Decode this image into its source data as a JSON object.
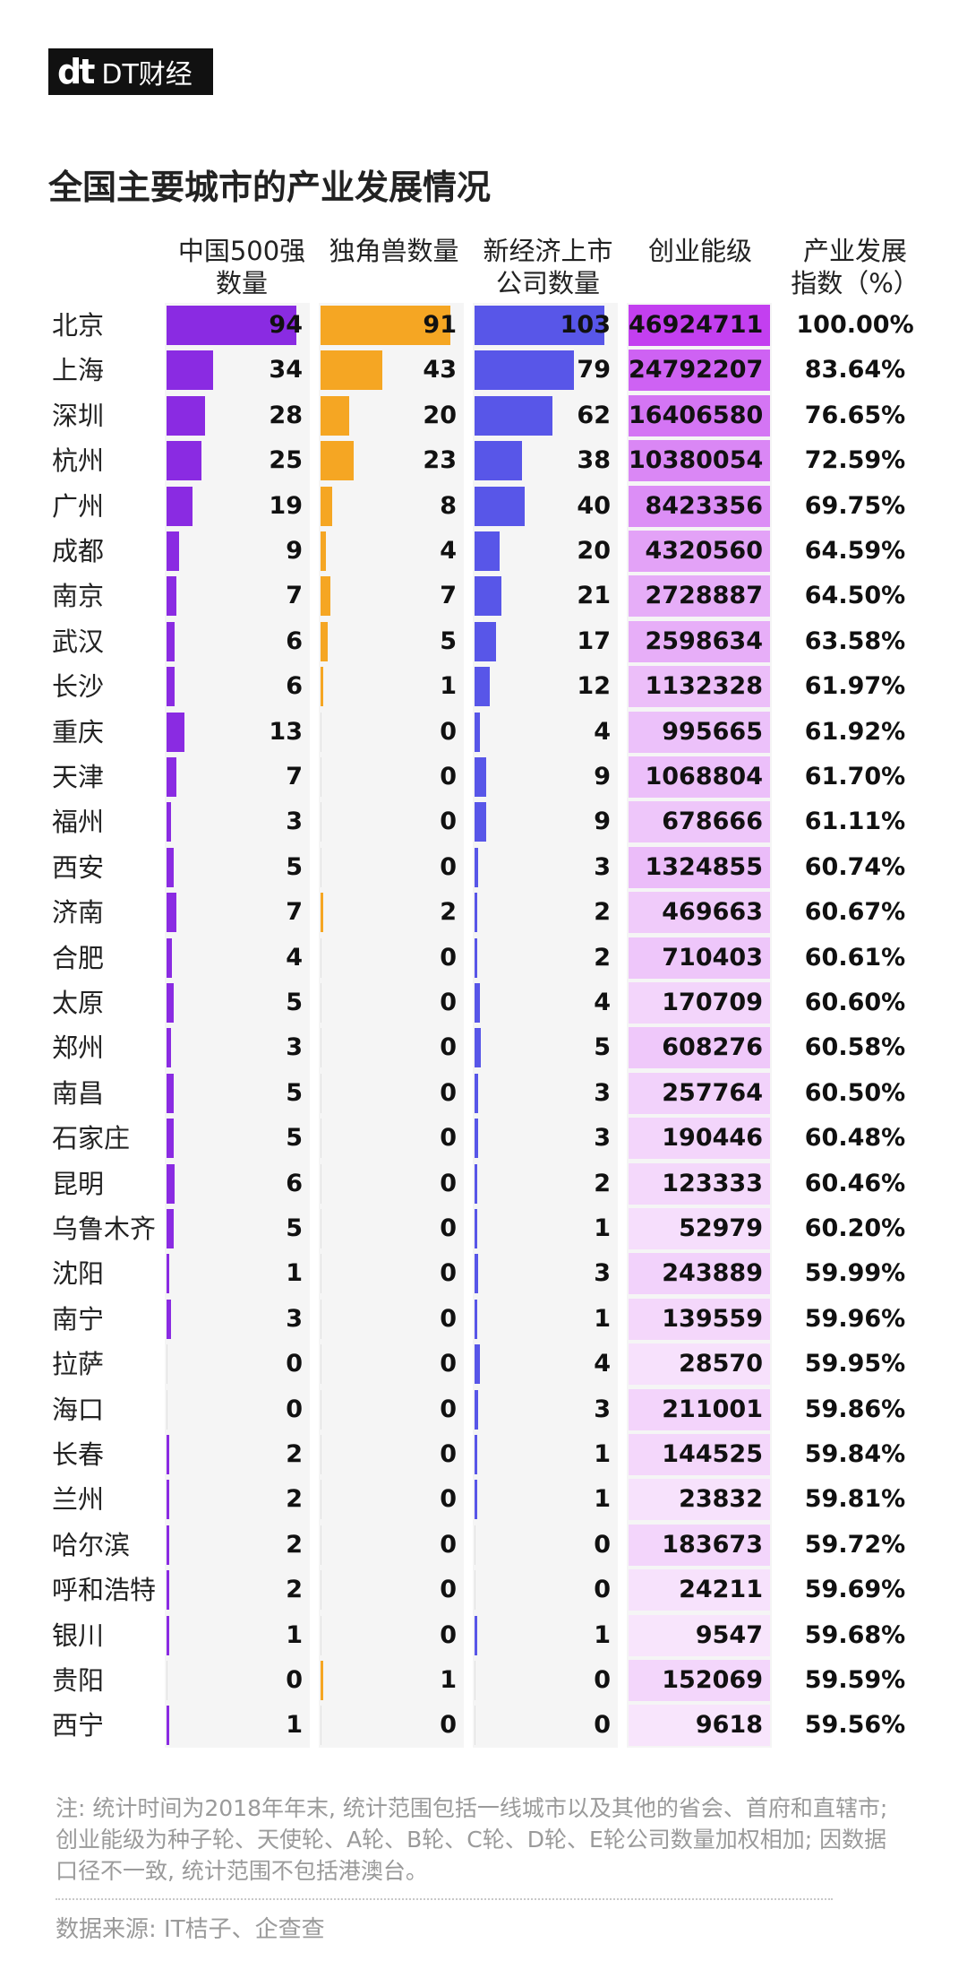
{
  "brand": {
    "mark": "dt",
    "name": "DT财经"
  },
  "title": "全国主要城市的产业发展情况",
  "headers": {
    "fortune500": "中国500强\n数量",
    "unicorn": "独角兽数量",
    "listed": "新经济上市\n公司数量",
    "startup": "创业能级",
    "index": "产业发展\n指数（%）"
  },
  "colors": {
    "fortune500": "#8a2be2",
    "unicorn": "#f5a623",
    "listed": "#5856e8",
    "startup_high": "#c33ff0",
    "startup_low": "#fbeefd"
  },
  "note": "注: 统计时间为2018年年末, 统计范围包括一线城市以及其他的省会、首府和直辖市;创业能级为种子轮、天使轮、A轮、B轮、C轮、D轮、E轮公司数量加权相加; 因数据口径不一致, 统计范围不包括港澳台。",
  "source": "数据来源: IT桔子、企查查",
  "chart_data": {
    "type": "table",
    "title": "全国主要城市的产业发展情况",
    "columns": [
      "中国500强数量",
      "独角兽数量",
      "新经济上市公司数量",
      "创业能级",
      "产业发展指数（%）"
    ],
    "rows": [
      {
        "city": "北京",
        "fortune500": 94,
        "unicorn": 91,
        "listed": 103,
        "startup": 46924711,
        "index": "100.00%"
      },
      {
        "city": "上海",
        "fortune500": 34,
        "unicorn": 43,
        "listed": 79,
        "startup": 24792207,
        "index": "83.64%"
      },
      {
        "city": "深圳",
        "fortune500": 28,
        "unicorn": 20,
        "listed": 62,
        "startup": 16406580,
        "index": "76.65%"
      },
      {
        "city": "杭州",
        "fortune500": 25,
        "unicorn": 23,
        "listed": 38,
        "startup": 10380054,
        "index": "72.59%"
      },
      {
        "city": "广州",
        "fortune500": 19,
        "unicorn": 8,
        "listed": 40,
        "startup": 8423356,
        "index": "69.75%"
      },
      {
        "city": "成都",
        "fortune500": 9,
        "unicorn": 4,
        "listed": 20,
        "startup": 4320560,
        "index": "64.59%"
      },
      {
        "city": "南京",
        "fortune500": 7,
        "unicorn": 7,
        "listed": 21,
        "startup": 2728887,
        "index": "64.50%"
      },
      {
        "city": "武汉",
        "fortune500": 6,
        "unicorn": 5,
        "listed": 17,
        "startup": 2598634,
        "index": "63.58%"
      },
      {
        "city": "长沙",
        "fortune500": 6,
        "unicorn": 1,
        "listed": 12,
        "startup": 1132328,
        "index": "61.97%"
      },
      {
        "city": "重庆",
        "fortune500": 13,
        "unicorn": 0,
        "listed": 4,
        "startup": 995665,
        "index": "61.92%"
      },
      {
        "city": "天津",
        "fortune500": 7,
        "unicorn": 0,
        "listed": 9,
        "startup": 1068804,
        "index": "61.70%"
      },
      {
        "city": "福州",
        "fortune500": 3,
        "unicorn": 0,
        "listed": 9,
        "startup": 678666,
        "index": "61.11%"
      },
      {
        "city": "西安",
        "fortune500": 5,
        "unicorn": 0,
        "listed": 3,
        "startup": 1324855,
        "index": "60.74%"
      },
      {
        "city": "济南",
        "fortune500": 7,
        "unicorn": 2,
        "listed": 2,
        "startup": 469663,
        "index": "60.67%"
      },
      {
        "city": "合肥",
        "fortune500": 4,
        "unicorn": 0,
        "listed": 2,
        "startup": 710403,
        "index": "60.61%"
      },
      {
        "city": "太原",
        "fortune500": 5,
        "unicorn": 0,
        "listed": 4,
        "startup": 170709,
        "index": "60.60%"
      },
      {
        "city": "郑州",
        "fortune500": 3,
        "unicorn": 0,
        "listed": 5,
        "startup": 608276,
        "index": "60.58%"
      },
      {
        "city": "南昌",
        "fortune500": 5,
        "unicorn": 0,
        "listed": 3,
        "startup": 257764,
        "index": "60.50%"
      },
      {
        "city": "石家庄",
        "fortune500": 5,
        "unicorn": 0,
        "listed": 3,
        "startup": 190446,
        "index": "60.48%"
      },
      {
        "city": "昆明",
        "fortune500": 6,
        "unicorn": 0,
        "listed": 2,
        "startup": 123333,
        "index": "60.46%"
      },
      {
        "city": "乌鲁木齐",
        "fortune500": 5,
        "unicorn": 0,
        "listed": 1,
        "startup": 52979,
        "index": "60.20%"
      },
      {
        "city": "沈阳",
        "fortune500": 1,
        "unicorn": 0,
        "listed": 3,
        "startup": 243889,
        "index": "59.99%"
      },
      {
        "city": "南宁",
        "fortune500": 3,
        "unicorn": 0,
        "listed": 1,
        "startup": 139559,
        "index": "59.96%"
      },
      {
        "city": "拉萨",
        "fortune500": 0,
        "unicorn": 0,
        "listed": 4,
        "startup": 28570,
        "index": "59.95%"
      },
      {
        "city": "海口",
        "fortune500": 0,
        "unicorn": 0,
        "listed": 3,
        "startup": 211001,
        "index": "59.86%"
      },
      {
        "city": "长春",
        "fortune500": 2,
        "unicorn": 0,
        "listed": 1,
        "startup": 144525,
        "index": "59.84%"
      },
      {
        "city": "兰州",
        "fortune500": 2,
        "unicorn": 0,
        "listed": 1,
        "startup": 23832,
        "index": "59.81%"
      },
      {
        "city": "哈尔滨",
        "fortune500": 2,
        "unicorn": 0,
        "listed": 0,
        "startup": 183673,
        "index": "59.72%"
      },
      {
        "city": "呼和浩特",
        "fortune500": 2,
        "unicorn": 0,
        "listed": 0,
        "startup": 24211,
        "index": "59.69%"
      },
      {
        "city": "银川",
        "fortune500": 1,
        "unicorn": 0,
        "listed": 1,
        "startup": 9547,
        "index": "59.68%"
      },
      {
        "city": "贵阳",
        "fortune500": 0,
        "unicorn": 1,
        "listed": 0,
        "startup": 152069,
        "index": "59.59%"
      },
      {
        "city": "西宁",
        "fortune500": 1,
        "unicorn": 0,
        "listed": 0,
        "startup": 9618,
        "index": "59.56%"
      }
    ]
  }
}
